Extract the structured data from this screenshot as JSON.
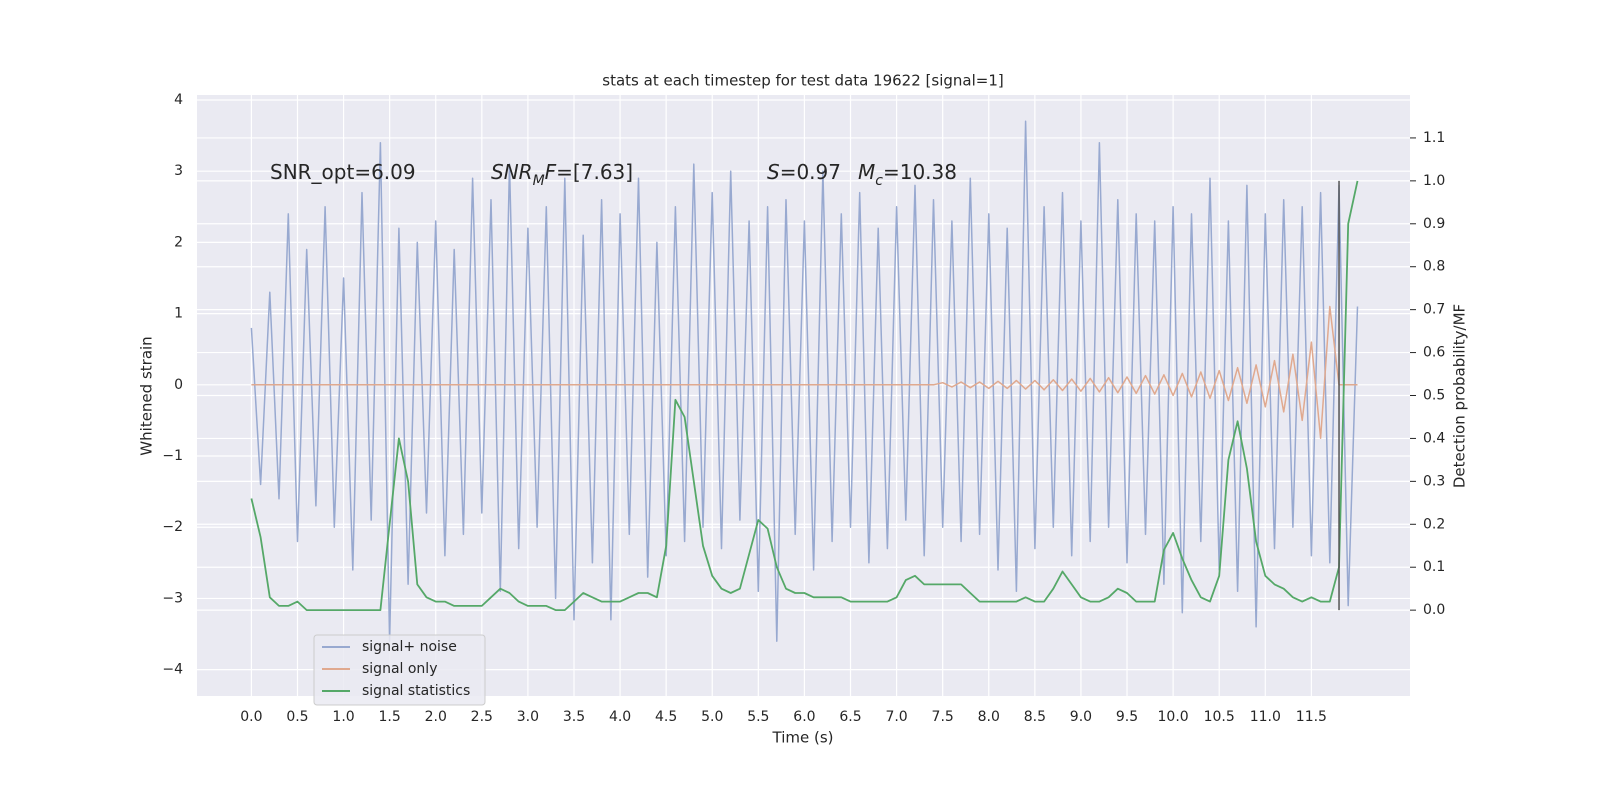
{
  "chart_data": {
    "type": "line",
    "title": "stats at each timestep for test data 19622 [signal=1]",
    "xlabel": "Time (s)",
    "ylabel": "Whitened strain",
    "y2label": "Detection probability/MF",
    "annotations": [
      [
        {
          "text": "SNR_opt=6.09"
        }
      ],
      [
        {
          "text": "SNR",
          "italic": true
        },
        {
          "text": "M",
          "italic": true,
          "sub": true
        },
        {
          "text": "F",
          "italic": true
        },
        {
          "text": "=[7.63]"
        }
      ],
      [
        {
          "text": "S",
          "italic": true
        },
        {
          "text": "=0.97"
        }
      ],
      [
        {
          "text": "M",
          "italic": true
        },
        {
          "text": "c",
          "italic": true,
          "sub": true
        },
        {
          "text": "=10.38"
        }
      ]
    ],
    "xlim": [
      -0.59,
      12.57
    ],
    "xticks": [
      {
        "value": 0,
        "label": "0.0"
      },
      0.5,
      {
        "value": 1,
        "label": "1.0"
      },
      1.5,
      {
        "value": 2,
        "label": "2.0"
      },
      2.5,
      {
        "value": 3,
        "label": "3.0"
      },
      3.5,
      {
        "value": 4,
        "label": "4.0"
      },
      4.5,
      {
        "value": 5,
        "label": "5.0"
      },
      5.5,
      {
        "value": 6,
        "label": "6.0"
      },
      6.5,
      {
        "value": 7,
        "label": "7.0"
      },
      7.5,
      {
        "value": 8,
        "label": "8.0"
      },
      8.5,
      {
        "value": 9,
        "label": "9.0"
      },
      9.5,
      {
        "value": 10,
        "label": "10.0"
      },
      10.5,
      {
        "value": 11,
        "label": "11.0"
      },
      11.5
    ],
    "ylim": [
      -4.37,
      4.07
    ],
    "yticks": [
      {
        "value": -4,
        "label": "−4"
      },
      {
        "value": -3,
        "label": "−3"
      },
      {
        "value": -2,
        "label": "−2"
      },
      {
        "value": -1,
        "label": "−1"
      },
      0,
      1,
      2,
      3,
      4
    ],
    "y2lim": [
      -0.2,
      1.2
    ],
    "y2ticks": [
      {
        "value": 0,
        "label": "0.0"
      },
      0.1,
      0.2,
      0.3,
      0.4,
      0.5,
      0.6,
      0.7,
      0.8,
      0.9,
      {
        "value": 1,
        "label": "1.0"
      },
      1.1
    ],
    "grid": true,
    "legend": "lower left",
    "x": [
      0.0,
      0.1,
      0.2,
      0.3,
      0.4,
      0.5,
      0.6,
      0.7,
      0.8,
      0.9,
      1.0,
      1.1,
      1.2,
      1.3,
      1.4,
      1.5,
      1.6,
      1.7,
      1.8,
      1.9,
      2.0,
      2.1,
      2.2,
      2.3,
      2.4,
      2.5,
      2.6,
      2.7,
      2.8,
      2.9,
      3.0,
      3.1,
      3.2,
      3.3,
      3.4,
      3.5,
      3.6,
      3.7,
      3.8,
      3.9,
      4.0,
      4.1,
      4.2,
      4.3,
      4.4,
      4.5,
      4.6,
      4.7,
      4.8,
      4.9,
      5.0,
      5.1,
      5.2,
      5.3,
      5.4,
      5.5,
      5.6,
      5.7,
      5.8,
      5.9,
      6.0,
      6.1,
      6.2,
      6.3,
      6.4,
      6.5,
      6.6,
      6.7,
      6.8,
      6.9,
      7.0,
      7.1,
      7.2,
      7.3,
      7.4,
      7.5,
      7.6,
      7.7,
      7.8,
      7.9,
      8.0,
      8.1,
      8.2,
      8.3,
      8.4,
      8.5,
      8.6,
      8.7,
      8.8,
      8.9,
      9.0,
      9.1,
      9.2,
      9.3,
      9.4,
      9.5,
      9.6,
      9.7,
      9.8,
      9.9,
      10.0,
      10.1,
      10.2,
      10.3,
      10.4,
      10.5,
      10.6,
      10.7,
      10.8,
      10.9,
      11.0,
      11.1,
      11.2,
      11.3,
      11.4,
      11.5,
      11.6,
      11.7,
      11.8,
      11.9,
      12.0
    ],
    "series": [
      {
        "name": "signal+ noise",
        "color": "#98a9d0",
        "values": [
          0.8,
          -1.4,
          1.3,
          -1.6,
          2.4,
          -2.2,
          1.9,
          -1.7,
          2.5,
          -2.0,
          1.5,
          -2.6,
          2.7,
          -1.9,
          3.4,
          -3.6,
          2.2,
          -2.8,
          2.0,
          -1.8,
          2.3,
          -2.4,
          1.9,
          -2.1,
          2.9,
          -1.8,
          2.6,
          -2.9,
          3.1,
          -2.3,
          2.2,
          -2.0,
          2.5,
          -3.0,
          2.9,
          -3.3,
          2.1,
          -2.5,
          2.6,
          -3.3,
          2.4,
          -2.1,
          2.9,
          -2.7,
          2.0,
          -2.4,
          2.5,
          -2.2,
          3.1,
          -2.0,
          2.7,
          -2.3,
          3.0,
          -1.9,
          2.3,
          -2.9,
          2.5,
          -3.6,
          2.6,
          -2.1,
          2.3,
          -2.6,
          3.0,
          -2.2,
          2.4,
          -2.0,
          2.7,
          -2.5,
          2.2,
          -2.3,
          2.5,
          -1.9,
          2.8,
          -2.4,
          2.6,
          -2.0,
          2.3,
          -2.2,
          2.9,
          -2.1,
          2.4,
          -2.6,
          2.2,
          -2.9,
          3.7,
          -2.3,
          2.5,
          -2.0,
          2.7,
          -2.4,
          2.3,
          -2.2,
          3.4,
          -2.0,
          2.6,
          -2.5,
          2.4,
          -2.1,
          2.3,
          -2.8,
          2.5,
          -3.2,
          2.4,
          -2.2,
          2.9,
          -2.6,
          2.3,
          -2.9,
          2.8,
          -3.4,
          2.4,
          -2.3,
          2.6,
          -2.0,
          2.5,
          -2.4,
          2.7,
          -2.5,
          2.8,
          -3.1,
          1.1
        ]
      },
      {
        "name": "signal only",
        "color": "#e0a98f",
        "values": [
          0,
          0,
          0,
          0,
          0,
          0,
          0,
          0,
          0,
          0,
          0,
          0,
          0,
          0,
          0,
          0,
          0,
          0,
          0,
          0,
          0,
          0,
          0,
          0,
          0,
          0,
          0,
          0,
          0,
          0,
          0,
          0,
          0,
          0,
          0,
          0,
          0,
          0,
          0,
          0,
          0,
          0,
          0,
          0,
          0,
          0,
          0,
          0,
          0,
          0,
          0,
          0,
          0,
          0,
          0,
          0,
          0,
          0,
          0,
          0,
          0,
          0,
          0,
          0,
          0,
          0,
          0,
          0,
          0,
          0,
          0,
          0,
          0,
          0,
          0,
          0.03,
          -0.03,
          0.04,
          -0.04,
          0.04,
          -0.05,
          0.05,
          -0.05,
          0.06,
          -0.06,
          0.06,
          -0.07,
          0.07,
          -0.08,
          0.08,
          -0.09,
          0.09,
          -0.1,
          0.1,
          -0.11,
          0.11,
          -0.12,
          0.13,
          -0.13,
          0.14,
          -0.15,
          0.16,
          -0.17,
          0.18,
          -0.19,
          0.2,
          -0.22,
          0.24,
          -0.26,
          0.28,
          -0.31,
          0.34,
          -0.38,
          0.43,
          -0.5,
          0.6,
          -0.75,
          1.1,
          0,
          0,
          0
        ]
      },
      {
        "name": "signal statistics",
        "color": "#55a868",
        "axis": "y2",
        "values": [
          0.26,
          0.17,
          0.03,
          0.01,
          0.01,
          0.02,
          0.0,
          0.0,
          0.0,
          0.0,
          0.0,
          0.0,
          0.0,
          0.0,
          0.0,
          0.2,
          0.4,
          0.3,
          0.06,
          0.03,
          0.02,
          0.02,
          0.01,
          0.01,
          0.01,
          0.01,
          0.03,
          0.05,
          0.04,
          0.02,
          0.01,
          0.01,
          0.01,
          0.0,
          0.0,
          0.02,
          0.04,
          0.03,
          0.02,
          0.02,
          0.02,
          0.03,
          0.04,
          0.04,
          0.03,
          0.15,
          0.49,
          0.45,
          0.3,
          0.15,
          0.08,
          0.05,
          0.04,
          0.05,
          0.13,
          0.21,
          0.19,
          0.1,
          0.05,
          0.04,
          0.04,
          0.03,
          0.03,
          0.03,
          0.03,
          0.02,
          0.02,
          0.02,
          0.02,
          0.02,
          0.03,
          0.07,
          0.08,
          0.06,
          0.06,
          0.06,
          0.06,
          0.06,
          0.04,
          0.02,
          0.02,
          0.02,
          0.02,
          0.02,
          0.03,
          0.02,
          0.02,
          0.05,
          0.09,
          0.06,
          0.03,
          0.02,
          0.02,
          0.03,
          0.05,
          0.04,
          0.02,
          0.02,
          0.02,
          0.14,
          0.18,
          0.12,
          0.07,
          0.03,
          0.02,
          0.08,
          0.35,
          0.44,
          0.33,
          0.16,
          0.08,
          0.06,
          0.05,
          0.03,
          0.02,
          0.03,
          0.02,
          0.02,
          0.1,
          0.9,
          1.0
        ]
      }
    ],
    "vline": {
      "x": 11.8,
      "y2range": [
        0,
        1.0
      ],
      "color": "#555555"
    }
  }
}
